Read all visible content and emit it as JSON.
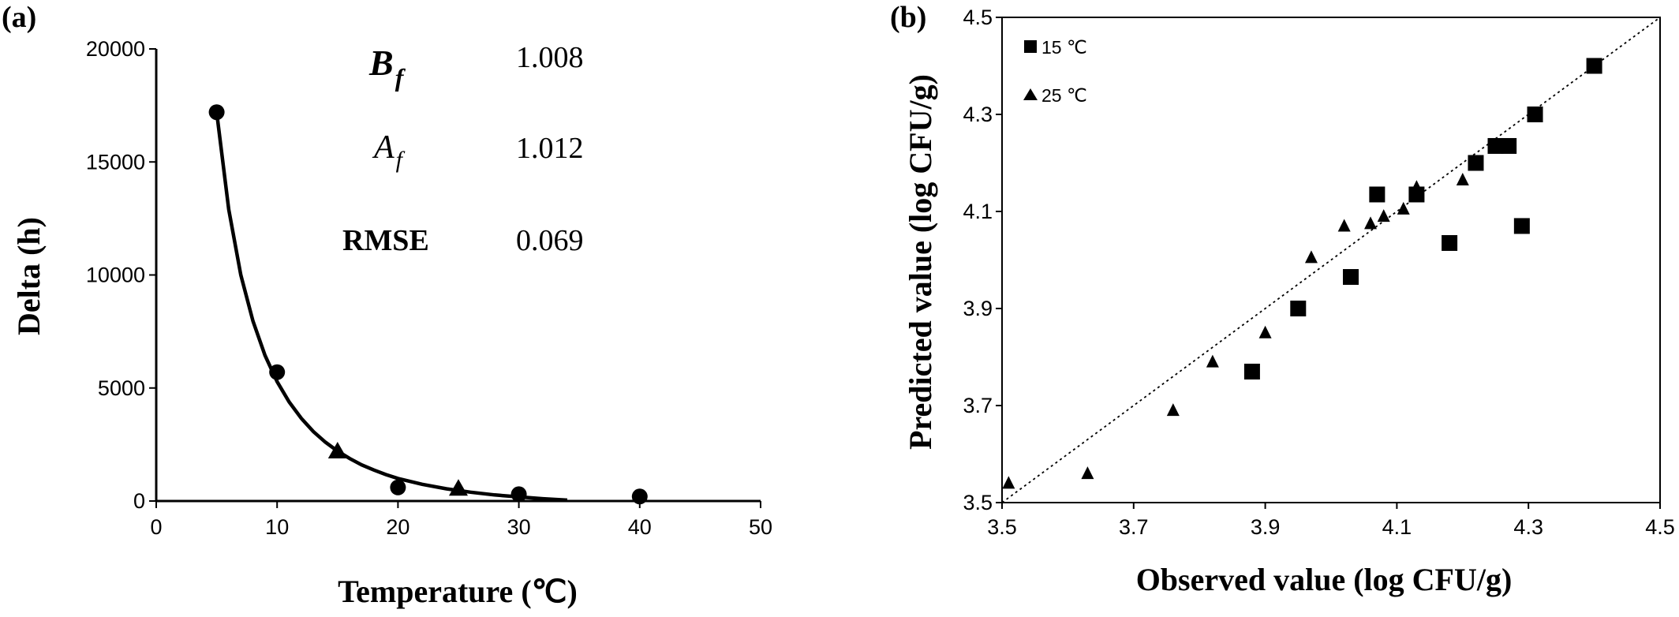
{
  "chart_data": [
    {
      "panel_label": "(a)",
      "type": "scatter",
      "xlabel": "Temperature (℃)",
      "ylabel": "Delta (h)",
      "xlim": [
        0,
        50
      ],
      "ylim": [
        0,
        20000
      ],
      "xticks": [
        "0",
        "10",
        "20",
        "30",
        "40",
        "50"
      ],
      "yticks": [
        "0",
        "5000",
        "10000",
        "15000",
        "20000"
      ],
      "xtick_values": [
        0,
        10,
        20,
        30,
        40,
        50
      ],
      "ytick_values": [
        0,
        5000,
        10000,
        15000,
        20000
      ],
      "series": [
        {
          "marker": "circle",
          "x": [
            5,
            10,
            20,
            30,
            40
          ],
          "y": [
            17200,
            5700,
            600,
            300,
            200
          ]
        },
        {
          "marker": "triangle",
          "x": [
            15,
            25
          ],
          "y": [
            2200,
            550
          ]
        }
      ],
      "fit_curve": {
        "style": "solid",
        "x": [
          5,
          6,
          7,
          8,
          9,
          10,
          11,
          12,
          13,
          14,
          15,
          16,
          17,
          18,
          19,
          20,
          22,
          24,
          26,
          28,
          30,
          32,
          34
        ],
        "y": [
          17200,
          12900,
          10000,
          7960,
          6440,
          5280,
          4380,
          3660,
          3070,
          2600,
          2210,
          1880,
          1600,
          1370,
          1170,
          1000,
          740,
          540,
          390,
          270,
          180,
          100,
          40
        ]
      },
      "annotations": [
        {
          "label_main": "B",
          "label_sub": "f",
          "value": "1.008"
        },
        {
          "label_main": "A",
          "label_sub": "f",
          "value": "1.012"
        },
        {
          "label_main": "RMSE",
          "label_sub": "",
          "value": "0.069"
        }
      ]
    },
    {
      "panel_label": "(b)",
      "type": "scatter",
      "xlabel": "Observed value (log CFU/g)",
      "ylabel": "Predicted value (log CFU/g)",
      "xlim": [
        3.5,
        4.5
      ],
      "ylim": [
        3.5,
        4.5
      ],
      "xticks": [
        "3.5",
        "3.7",
        "3.9",
        "4.1",
        "4.3",
        "4.5"
      ],
      "yticks": [
        "3.5",
        "3.7",
        "3.9",
        "4.1",
        "4.3",
        "4.5"
      ],
      "xtick_values": [
        3.5,
        3.7,
        3.9,
        4.1,
        4.3,
        4.5
      ],
      "ytick_values": [
        3.5,
        3.7,
        3.9,
        4.1,
        4.3,
        4.5
      ],
      "reference_line": {
        "style": "dotted",
        "from": [
          3.5,
          3.5
        ],
        "to": [
          4.5,
          4.5
        ]
      },
      "legend_position": "top-left",
      "series": [
        {
          "name": "15 ℃",
          "marker": "square",
          "x": [
            3.88,
            3.95,
            4.03,
            4.07,
            4.13,
            4.18,
            4.22,
            4.25,
            4.27,
            4.29,
            4.31,
            4.4
          ],
          "y": [
            3.77,
            3.9,
            3.965,
            4.135,
            4.135,
            4.035,
            4.2,
            4.235,
            4.235,
            4.07,
            4.3,
            4.4
          ]
        },
        {
          "name": "25 ℃",
          "marker": "triangle",
          "x": [
            3.51,
            3.63,
            3.76,
            3.82,
            3.9,
            3.97,
            4.02,
            4.06,
            4.08,
            4.11,
            4.13,
            4.2
          ],
          "y": [
            3.54,
            3.56,
            3.69,
            3.79,
            3.85,
            4.005,
            4.07,
            4.075,
            4.09,
            4.105,
            4.15,
            4.165
          ]
        }
      ]
    }
  ]
}
